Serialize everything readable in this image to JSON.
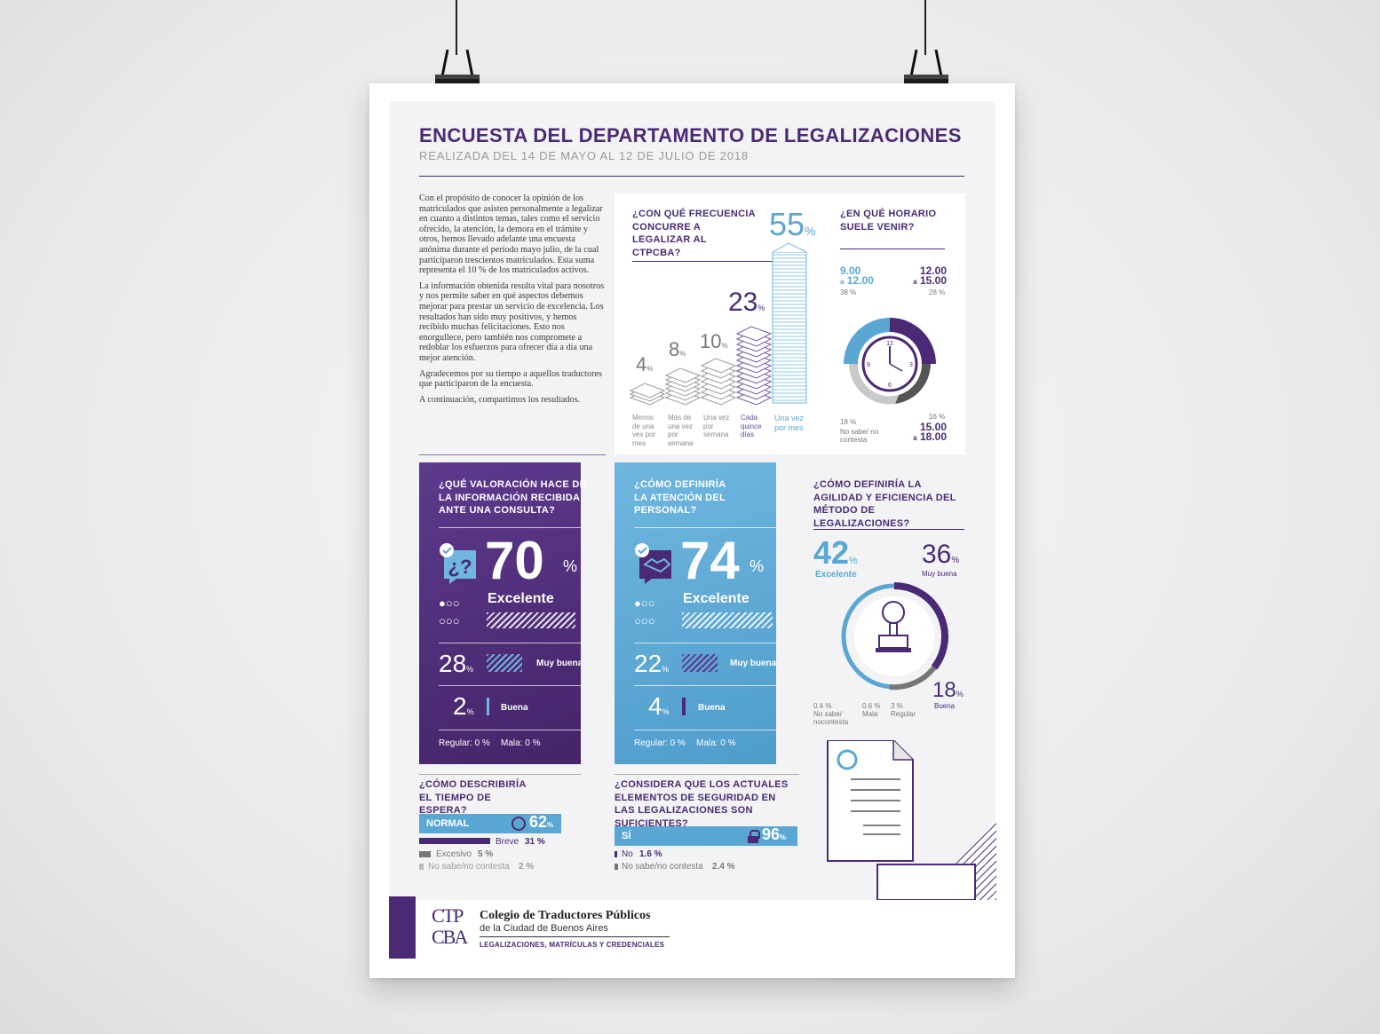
{
  "header": {
    "title": "ENCUESTA DEL DEPARTAMENTO DE LEGALIZACIONES",
    "subtitle": "REALIZADA DEL 14 DE MAYO AL 12 DE JULIO DE 2018"
  },
  "intro": {
    "p1": "Con el propósito de conocer la opinión de los matriculados que asisten personalmente a legalizar en cuanto a distintos temas, tales como el servicio ofrecido, la atención, la demora en el trámite y otros, hemos llevado adelante una encuesta anónima durante el período mayo julio, de la cual participaron trescientos matriculados. Esta suma representa el 10 % de los matriculados activos.",
    "p2": "La información obtenida resulta vital para nosotros y nos permite saber en qué aspectos debemos mejorar para prestar un servicio de excelencia. Los resultados han sido muy positivos, y hemos recibido muchas felicitaciones. Esto nos enorgullece, pero también nos compromete a redoblar los esfuerzos para ofrecer día a día una mejor atención.",
    "p3": "Agradecemos por su tiempo a aquellos traductores que participaron de la encuesta.",
    "p4": "A continuación, compartimos los resultados."
  },
  "frequency": {
    "question": "¿CON QUÉ FRECUENCIA CONCURRE A LEGALIZAR AL CTPCBA?",
    "pct_sign": "%",
    "bars": [
      {
        "value": "4",
        "label": "Menos de una ves por mes"
      },
      {
        "value": "8",
        "label": "Más de una vez por semana"
      },
      {
        "value": "10",
        "label": "Una vez por semana"
      },
      {
        "value": "23",
        "label": "Cada quince días"
      },
      {
        "value": "55",
        "label": "Una vez por mes"
      }
    ]
  },
  "schedule": {
    "question": "¿EN QUÉ HORARIO SUELE VENIR?",
    "s1_from": "9.00",
    "s1_to": "12.00",
    "s1_a": "a",
    "s1_pct": "38 %",
    "s2_from": "12.00",
    "s2_to": "15.00",
    "s2_a": "a",
    "s2_pct": "28 %",
    "s3_from": "15.00",
    "s3_to": "18.00",
    "s3_a": "a",
    "s3_pct": "16 %",
    "s4_pct": "18 %",
    "s4_label": "No sabe/ no contesta",
    "clock_12": "12",
    "clock_3": "3",
    "clock_6": "6",
    "clock_9": "9"
  },
  "info_card": {
    "question": "¿QUÉ VALORACIÓN HACE DE LA INFORMACIÓN RECIBIDA ANTE UNA CONSULTA?",
    "main_value": "70",
    "main_pct": "%",
    "main_label": "Excelente",
    "r2_value": "28",
    "r2_label": "Muy buena",
    "r3_value": "2",
    "r3_label": "Buena",
    "footer_regular": "Regular: 0 %",
    "footer_mala": "Mala: 0 %"
  },
  "attention_card": {
    "question": "¿CÓMO DEFINIRÍA LA ATENCIÓN DEL PERSONAL?",
    "main_value": "74",
    "main_pct": "%",
    "main_label": "Excelente",
    "r2_value": "22",
    "r2_label": "Muy buena",
    "r3_value": "4",
    "r3_label": "Buena",
    "footer_regular": "Regular: 0 %",
    "footer_mala": "Mala: 0 %"
  },
  "agility": {
    "question": "¿CÓMO DEFINIRÍA LA AGILIDAD Y EFICIENCIA DEL MÉTODO DE LEGALIZACIONES?",
    "exc_value": "42",
    "exc_label": "Excelente",
    "mb_value": "36",
    "mb_label": "Muy buena",
    "b_value": "18",
    "b_label": "Buena",
    "ns_pct": "0.4 %",
    "ns_label": "No sabe/ nocontesta",
    "mala_pct": "0.6 %",
    "mala_label": "Mala",
    "reg_pct": "3 %",
    "reg_label": "Regular"
  },
  "wait": {
    "question": "¿CÓMO DESCRIBIRÍA EL TIEMPO DE ESPERA?",
    "normal_label": "NORMAL",
    "normal_value": "62",
    "breve_label": "Breve",
    "breve_value": "31 %",
    "excesivo_label": "Excesivo",
    "excesivo_value": "5 %",
    "ns_label": "No sabe/no contesta",
    "ns_value": "2 %"
  },
  "security": {
    "question": "¿CONSIDERA QUE LOS ACTUALES ELEMENTOS DE SEGURIDAD EN LAS LEGALIZACIONES SON SUFICIENTES?",
    "si_label": "SÍ",
    "si_value": "96",
    "no_label": "No",
    "no_value": "1.6 %",
    "ns_label": "No sabe/no contesta",
    "ns_value": "2.4 %"
  },
  "footer": {
    "org_line1": "Colegio de Traductores Públicos",
    "org_line2": "de la Ciudad de Buenos Aires",
    "org_line3": "LEGALIZACIONES, MATRÍCULAS Y CREDENCIALES",
    "logo_letters": "CTPCBA"
  },
  "colors": {
    "purple": "#4a2a74",
    "blue": "#5ba7d3"
  }
}
